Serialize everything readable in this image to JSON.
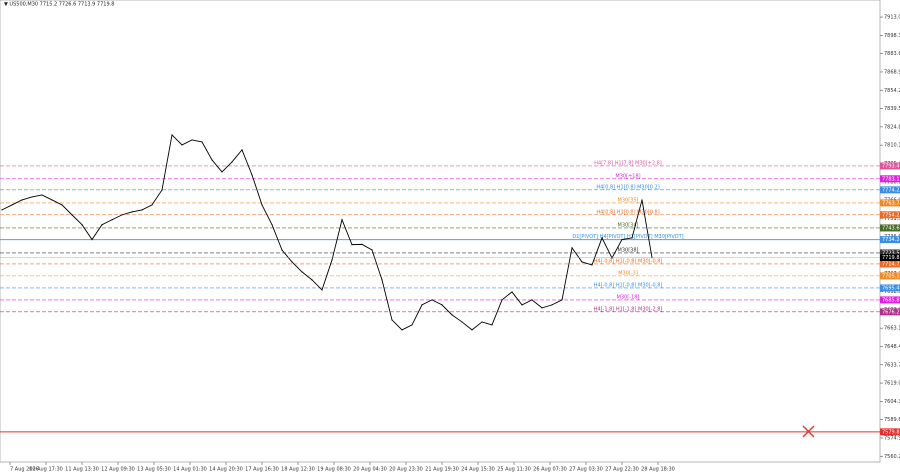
{
  "chart_data": {
    "type": "line",
    "title": "▼ US500,M30  7715.2 7726.6 7713.9 7719.8",
    "color": "#000000",
    "x_labels": [
      "7 Aug 2026",
      "10 Aug 17:30",
      "11 Aug 13:30",
      "12 Aug 09:30",
      "13 Aug 05:30",
      "14 Aug 01:30",
      "14 Aug 20:30",
      "17 Aug 16:30",
      "18 Aug 12:30",
      "19 Aug 08:30",
      "20 Aug 04:30",
      "20 Aug 23:30",
      "21 Aug 19:30",
      "24 Aug 15:30",
      "25 Aug 11:30",
      "26 Aug 07:30",
      "27 Aug 03:30",
      "27 Aug 22:30",
      "28 Aug 18:30"
    ],
    "values": [
      7758.1,
      7762.1,
      7766.1,
      7768.5,
      7770.1,
      7766.1,
      7762.1,
      7754.1,
      7746.2,
      7734.3,
      7746.2,
      7750.2,
      7754.1,
      7756.5,
      7758.1,
      7762.1,
      7774.1,
      7818.3,
      7810.3,
      7814.3,
      7812.7,
      7798.2,
      7788.6,
      7796.6,
      7806.3,
      7786.2,
      7762.1,
      7746.2,
      7725.9,
      7716.3,
      7708.3,
      7701.9,
      7693.8,
      7717.9,
      7750.2,
      7730.2,
      7730.4,
      7725.9,
      7701.9,
      7669.7,
      7661.7,
      7665.7,
      7681.8,
      7685.8,
      7681.8,
      7673.8,
      7668.1,
      7661.7,
      7668.1,
      7665.7,
      7685.8,
      7692.2,
      7681.8,
      7685.8,
      7679.4,
      7681.8,
      7685.8,
      7727.6,
      7716.3,
      7713.9,
      7735.6,
      7719.5,
      7734.3,
      7735.6,
      7766.1,
      7719.8
    ],
    "ylim": [
      7555.6,
      7926.7
    ],
    "yticks": [
      {
        "value": 7913,
        "label": "7913.0"
      },
      7898.3,
      7883.6,
      7868.9,
      7854.2,
      7839.5,
      7824.8,
      7810.1,
      7795.4,
      7780.7,
      {
        "value": 7766,
        "label": "7766.0"
      },
      7751.3,
      7736.6,
      7721.9,
      7707.2,
      7692.5,
      7677.8,
      7663.1,
      7648.4,
      7633.7,
      {
        "value": 7619,
        "label": "7619.0"
      },
      7604.3,
      7589.6,
      7574.9,
      7560.2
    ],
    "levels": [
      {
        "value": 7793.4,
        "label": "H4[7.8] H1[7.8] M30[+2.8]",
        "color": "#e0559a",
        "style": "dashed"
      },
      {
        "value": 7783.1,
        "label": "M30[+18]",
        "color": "#e020e0",
        "style": "dashed"
      },
      {
        "value": 7774.2,
        "label": "H4[0.8] H1[0.8] M30[0.2]",
        "color": "#3a8ee6",
        "style": "dashed"
      },
      {
        "value": 7763.7,
        "label": "M30[35]",
        "color": "#f08a24",
        "style": "dashed"
      },
      {
        "value": 7754.2,
        "label": "H4[0.8] H1[0.8] M30[0.8]",
        "color": "#f06a24",
        "style": "dashed"
      },
      {
        "value": 7743.6,
        "label": "M30[34]",
        "color": "#4a6a2a",
        "style": "dashed"
      },
      {
        "value": 7734.2,
        "label": "D1[PIVOT] H4[PIVOT] H1[PIVOT] M30[PIVOT]",
        "color": "#3a8ee6",
        "style": "solid"
      },
      {
        "value": 7723.5,
        "label": "M30[38]",
        "color": "#333333",
        "style": "dashed"
      },
      {
        "value": 7714.7,
        "label": "H4[-0.8] H1[-0.8] M30[-0.8]",
        "color": "#f06a24",
        "style": "dashed"
      },
      {
        "value": 7705.1,
        "label": "M30[-3]",
        "color": "#f08a24",
        "style": "dashed"
      },
      {
        "value": 7695.4,
        "label": "H4[-0.8] H1[-0.8] M30[-0.8]",
        "color": "#3a8ee6",
        "style": "dashed"
      },
      {
        "value": 7685.8,
        "label": "M30[-18]",
        "color": "#e020e0",
        "style": "dashed"
      },
      {
        "value": 7676.2,
        "label": "H4[-1.8] H1[-1.8] M30[-2.8]",
        "color": "#b0308a",
        "style": "dashed"
      },
      {
        "value": 7579.8,
        "label": "",
        "color": "#e03030",
        "style": "solid"
      }
    ],
    "current": 7719.8
  }
}
